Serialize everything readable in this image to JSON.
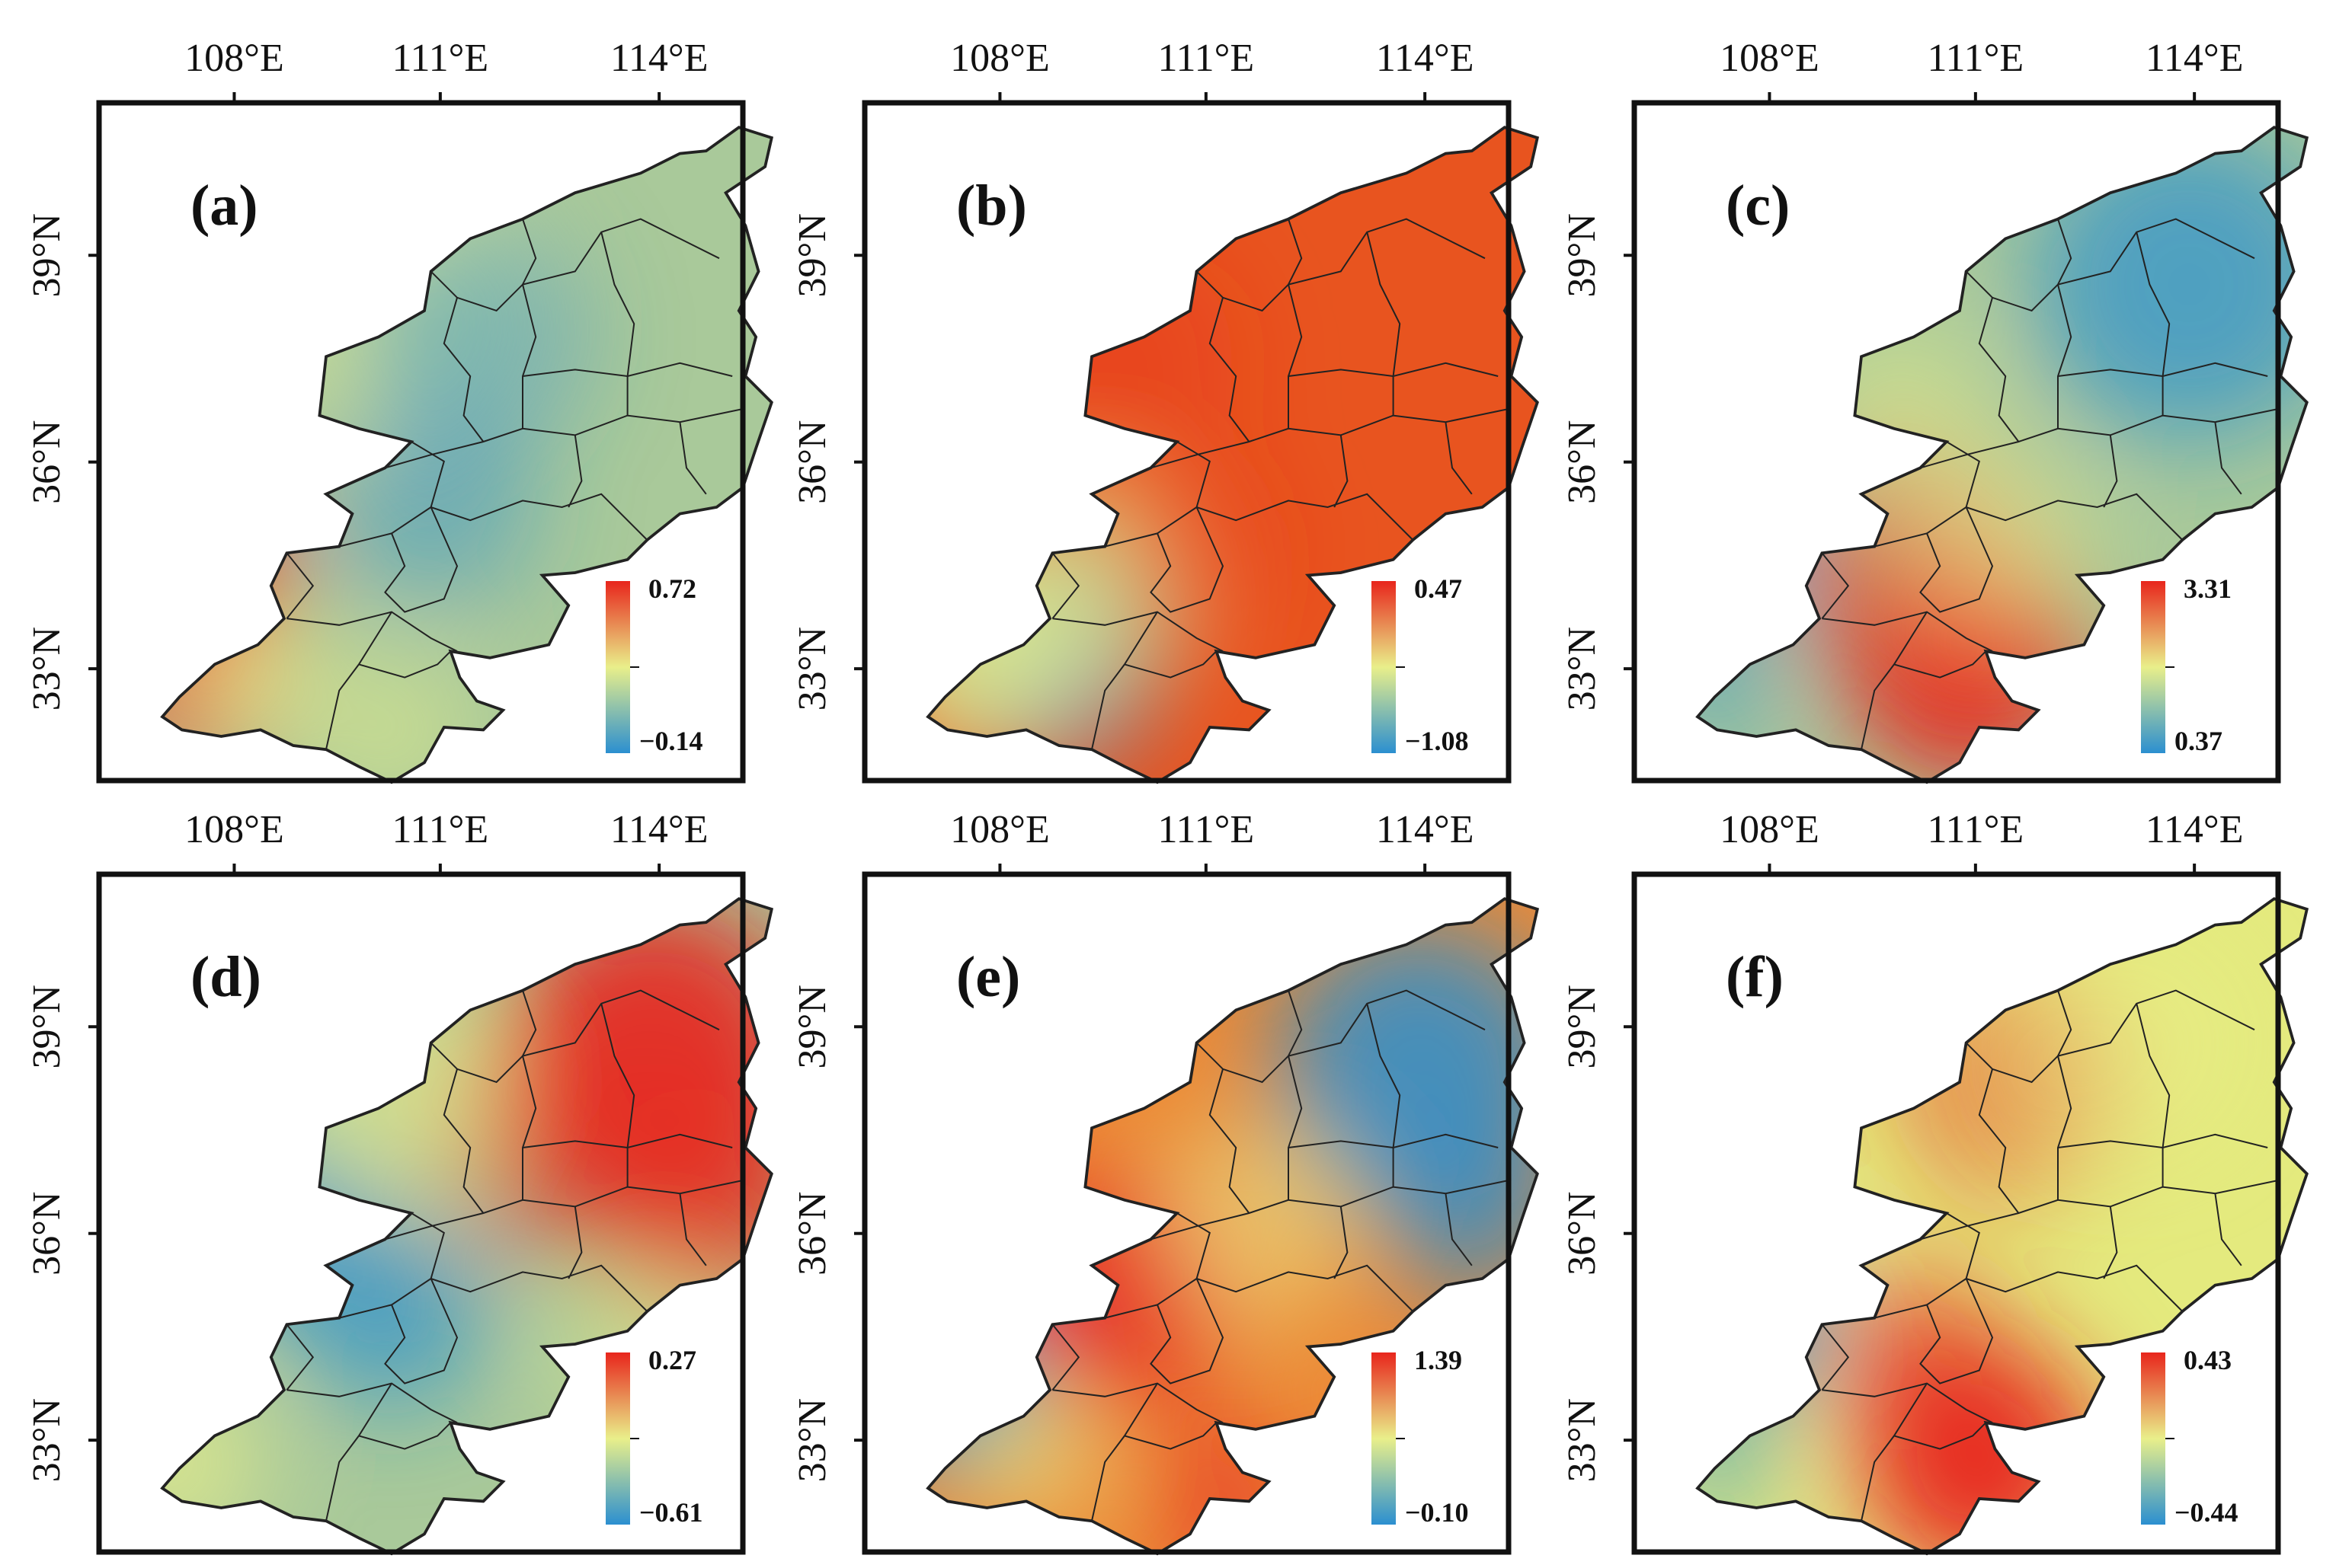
{
  "figure": {
    "lon_labels": [
      "108°E",
      "111°E",
      "114°E"
    ],
    "lat_labels": [
      "39°N",
      "36°N",
      "33°N"
    ],
    "colormap": [
      "#2b8fd0",
      "#e9ef8a",
      "#e8251c"
    ],
    "panels": [
      {
        "label": "(a)",
        "legend_max": "0.72",
        "legend_min": "−0.14"
      },
      {
        "label": "(b)",
        "legend_max": "0.47",
        "legend_min": "−1.08"
      },
      {
        "label": "(c)",
        "legend_max": "3.31",
        "legend_min": "0.37"
      },
      {
        "label": "(d)",
        "legend_max": "0.27",
        "legend_min": "−0.61"
      },
      {
        "label": "(e)",
        "legend_max": "1.39",
        "legend_min": "−0.10"
      },
      {
        "label": "(f)",
        "legend_max": "0.43",
        "legend_min": "−0.44"
      }
    ]
  }
}
